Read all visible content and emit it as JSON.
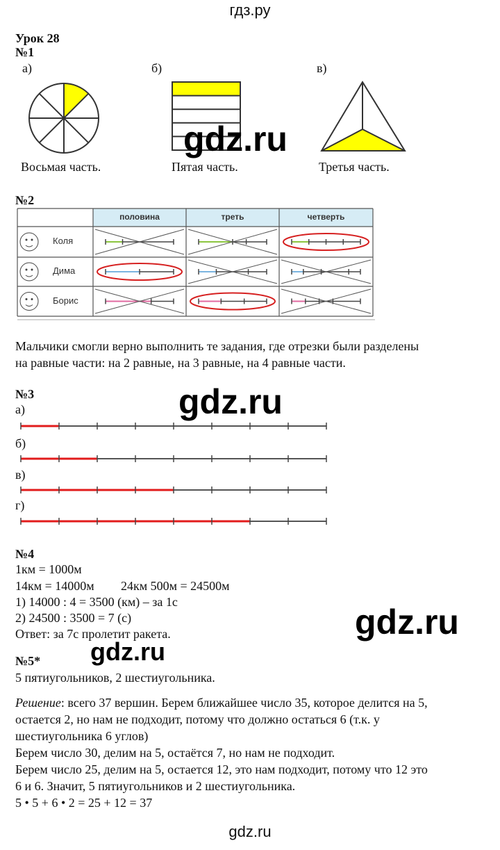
{
  "site_header": "гдз.ру",
  "site_footer": "gdz.ru",
  "watermark": "gdz.ru",
  "lesson": "Урок 28",
  "task1": {
    "title": "№1",
    "items": [
      {
        "label": "а)",
        "caption": "Восьмая часть.",
        "shape": "circle",
        "parts": 8,
        "shaded": 1
      },
      {
        "label": "б)",
        "caption": "Пятая часть.",
        "shape": "rectangle",
        "parts": 5,
        "shaded": 1
      },
      {
        "label": "в)",
        "caption": "Третья часть.",
        "shape": "triangle",
        "parts": 3,
        "shaded": 1
      }
    ],
    "fill_color": "#ffff00"
  },
  "task2": {
    "title": "№2",
    "columns": [
      "половина",
      "треть",
      "четверть"
    ],
    "header_color": "#d6ecf5",
    "rows": [
      {
        "name": "Коля",
        "color": "#8cc63f",
        "cells": [
          {
            "ticks": [
              0,
              0.25,
              1
            ],
            "result": "crossed"
          },
          {
            "ticks": [
              0,
              0.5,
              0.7,
              1
            ],
            "result": "crossed"
          },
          {
            "ticks": [
              0,
              0.25,
              0.5,
              0.75,
              1
            ],
            "result": "circled"
          }
        ]
      },
      {
        "name": "Дима",
        "color": "#7ab4e0",
        "cells": [
          {
            "ticks": [
              0,
              0.5,
              1
            ],
            "result": "circled"
          },
          {
            "ticks": [
              0,
              0.26,
              0.73,
              1
            ],
            "result": "crossed"
          },
          {
            "ticks": [
              0,
              0.17,
              0.43,
              0.83,
              1
            ],
            "result": "crossed"
          }
        ]
      },
      {
        "name": "Борис",
        "color": "#e06aa0",
        "cells": [
          {
            "ticks": [
              0,
              0.67,
              1
            ],
            "result": "crossed"
          },
          {
            "ticks": [
              0,
              0.33,
              0.67,
              1
            ],
            "result": "circled"
          },
          {
            "ticks": [
              0,
              0.2,
              0.4,
              0.6,
              1
            ],
            "result": "crossed"
          }
        ]
      }
    ],
    "answer_lines": [
      "Мальчики смогли верно выполнить те задания, где отрезки были разделены",
      "на равные части: на 2 равные, на 3 равные, на 4 равные части."
    ]
  },
  "task3": {
    "title": "№3",
    "segments": 8,
    "items": [
      {
        "label": "а)",
        "red": 1
      },
      {
        "label": "б)",
        "red": 2
      },
      {
        "label": "в)",
        "red": 4
      },
      {
        "label": "г)",
        "red": 6
      }
    ],
    "red_color": "#e21c1c"
  },
  "task4": {
    "title": "№4",
    "lines": [
      "1км = 1000м",
      "14км = 14000м",
      "24км 500м = 24500м",
      "1) 14000 : 4 = 3500 (км) – за 1с",
      "2) 24500 : 3500 = 7 (с)",
      "Ответ: за 7с пролетит ракета."
    ]
  },
  "task5": {
    "title": "№5*",
    "answer": "5 пятиугольников, 2 шестиугольника.",
    "solution_label": "Решение",
    "solution_lines": [
      ": всего 37 вершин. Берем ближайшее число 35, которое делится на 5,",
      "остается 2, но нам не подходит, потому что должно остаться 6 (т.к. у",
      "шестиугольника 6 углов)",
      "Берем число 30, делим на 5, остаётся 7, но нам не подходит.",
      "Берем число 25, делим на 5, остается 12, это нам подходит, потому что 12 это",
      "6 и 6. Значит, 5 пятиугольников и 2 шестиугольника.",
      "5 • 5 + 6 • 2 = 25 + 12 = 37"
    ]
  }
}
